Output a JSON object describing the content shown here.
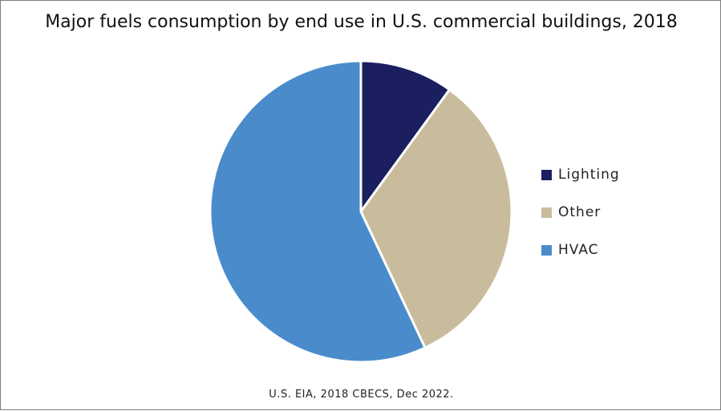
{
  "chart_data": {
    "type": "pie",
    "title": "Major fuels consumption by end use in U.S. commercial buildings, 2018",
    "categories": [
      "Lighting",
      "Other",
      "HVAC"
    ],
    "values": [
      10,
      33,
      57
    ],
    "unit": "",
    "colors": [
      "#1b1e5f",
      "#c9bc9c",
      "#4a8ccb"
    ],
    "legend_position": "right",
    "source": "U.S. EIA, 2018 CBECS, Dec 2022."
  }
}
